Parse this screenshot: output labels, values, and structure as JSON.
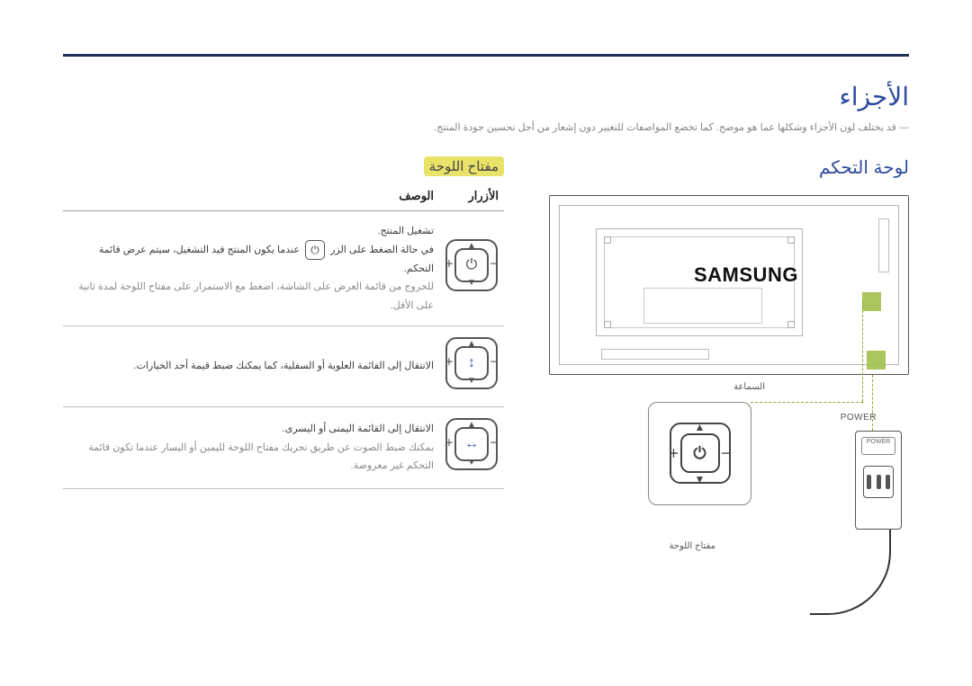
{
  "page": {
    "title": "الأجزاء",
    "note": "قد يختلف لون الأجزاء وشكلها عما هو موضح. كما تخضع المواصفات للتغيير دون إشعار من أجل تحسين جودة المنتج.",
    "section_control_panel": "لوحة التحكم",
    "section_panel_key": "مفتاح اللوحة"
  },
  "diagram": {
    "brand": "SAMSUNG",
    "label_speaker": "السماعة",
    "label_power": "POWER",
    "label_panel_key": "مفتاح اللوحة",
    "brick_label": "POWER",
    "marker_color": "#a4c14e",
    "dash_color": "#8aad2a"
  },
  "table": {
    "headers": {
      "buttons": "الأزرار",
      "description": "الوصف"
    },
    "rows": [
      {
        "icon": "power",
        "center_glyph": "⏻",
        "desc_lines": [
          "تشغيل المنتج.",
          "في حالة الضغط على الزر  [⏻]  عندما يكون المنتج قيد التشغيل، سيتم عرض قائمة التحكم.",
          "للخروج من قائمة العرض على الشاشة، اضغط مع الاستمرار على مفتاح اللوحة لمدة ثانية على الأقل."
        ]
      },
      {
        "icon": "updown",
        "center_glyph": "↕",
        "desc_lines": [
          "الانتقال إلى القائمة العلوية أو السفلية، كما يمكنك ضبط قيمة أحد الخيارات."
        ]
      },
      {
        "icon": "leftright",
        "center_glyph": "↔",
        "desc_lines": [
          "الانتقال إلى القائمة اليمنى أو اليسرى.",
          "يمكنك ضبط الصوت عن طريق تحريك مفتاح اللوحة لليمين أو اليسار عندما تكون قائمة التحكم غير معروضة."
        ]
      }
    ]
  },
  "style": {
    "accent": "#2e4a9e",
    "highlight_bg": "#e8e268",
    "text_gray": "#858585",
    "divider": "#1f2d5a"
  }
}
